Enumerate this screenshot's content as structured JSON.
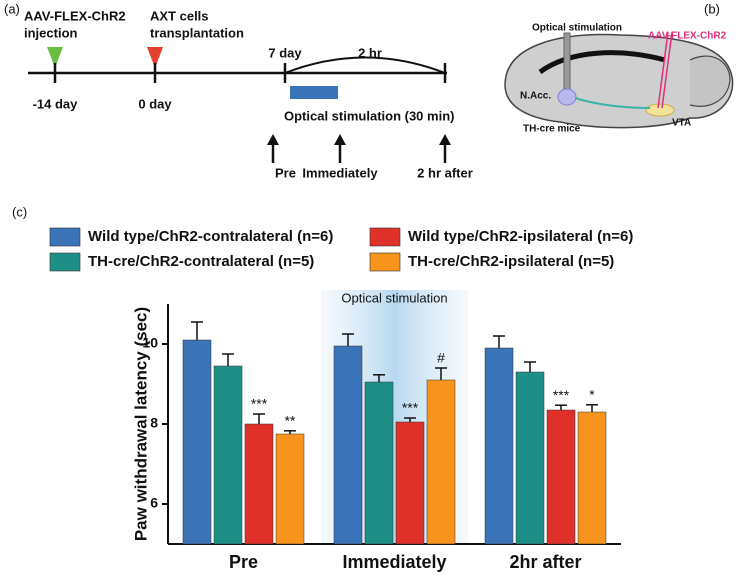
{
  "panel_a": {
    "label": "(a)",
    "events": [
      {
        "lines": [
          "AAV-FLEX-ChR2",
          "injection"
        ],
        "day": "-14 day"
      },
      {
        "lines": [
          "AXT cells",
          "transplantation"
        ],
        "day": "0 day"
      }
    ],
    "start": "7 day",
    "duration": "2 hr",
    "stimulation": "Optical stimulation (30 min)",
    "timepoints": [
      "Pre",
      "Immediately",
      "2 hr after"
    ]
  },
  "panel_b": {
    "label": "(b)",
    "optical": "Optical stimulation",
    "virus": "AAV-FLEX-ChR2",
    "nacc": "N.Acc.",
    "mice": "TH-cre mice",
    "vta": "VTA"
  },
  "chart_data": {
    "type": "bar",
    "panel_label": "(c)",
    "ylabel": "Paw withdrawal latency (sec)",
    "categories": [
      "Pre",
      "Immediately",
      "2hr after"
    ],
    "shaded_label": "Optical stimulation",
    "ylim": [
      5,
      11
    ],
    "yticks": [
      6,
      8,
      10
    ],
    "series": [
      {
        "name": "Wild type/ChR2-contralateral (n=6)",
        "color": "#3b73b9",
        "values": [
          10.1,
          9.95,
          9.9
        ],
        "errors": [
          0.45,
          0.3,
          0.3
        ]
      },
      {
        "name": "TH-cre/ChR2-contralateral (n=5)",
        "color": "#1e8f87",
        "values": [
          9.45,
          9.05,
          9.3
        ],
        "errors": [
          0.3,
          0.18,
          0.25
        ]
      },
      {
        "name": "Wild type/ChR2-ipsilateral (n=6)",
        "color": "#e0302a",
        "values": [
          8.0,
          8.05,
          8.35
        ],
        "errors": [
          0.25,
          0.1,
          0.12
        ],
        "markers": [
          "***",
          "***",
          "***"
        ]
      },
      {
        "name": "TH-cre/ChR2-ipsilateral (n=5)",
        "color": "#f7941d",
        "values": [
          7.75,
          9.1,
          8.3
        ],
        "errors": [
          0.08,
          0.3,
          0.18
        ],
        "markers": [
          "**",
          "#",
          "*"
        ]
      }
    ]
  }
}
